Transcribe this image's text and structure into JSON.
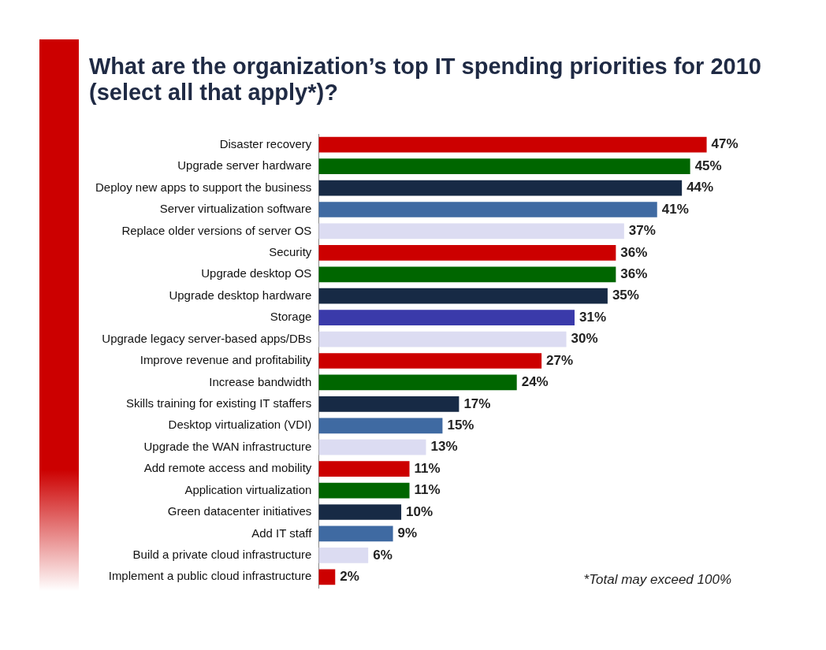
{
  "chart_data": {
    "type": "bar",
    "orientation": "horizontal",
    "title": "What are the organization’s top IT spending priorities for 2010 (select all that apply*)?",
    "categories": [
      "Disaster recovery",
      "Upgrade server hardware",
      "Deploy new apps to support the business",
      "Server virtualization software",
      "Replace older versions of server OS",
      "Security",
      "Upgrade desktop OS",
      "Upgrade desktop hardware",
      "Storage",
      "Upgrade legacy server-based apps/DBs",
      "Improve revenue and profitability",
      "Increase bandwidth",
      "Skills training for existing IT staffers",
      "Desktop virtualization (VDI)",
      "Upgrade the WAN infrastructure",
      "Add remote access and mobility",
      "Application virtualization",
      "Green datacenter initiatives",
      "Add IT staff",
      "Build a private cloud infrastructure",
      "Implement a public cloud infrastructure"
    ],
    "values": [
      47,
      45,
      44,
      41,
      37,
      36,
      36,
      35,
      31,
      30,
      27,
      24,
      17,
      15,
      13,
      11,
      11,
      10,
      9,
      6,
      2
    ],
    "value_labels": [
      "47%",
      "45%",
      "44%",
      "41%",
      "37%",
      "36%",
      "36%",
      "35%",
      "31%",
      "30%",
      "27%",
      "24%",
      "17%",
      "15%",
      "13%",
      "11%",
      "11%",
      "10%",
      "9%",
      "6%",
      "2%"
    ],
    "colors": [
      "#cc0000",
      "#006600",
      "#172a45",
      "#3f6aa2",
      "#dcdcf2",
      "#cc0000",
      "#006600",
      "#172a45",
      "#3a3aaa",
      "#dcdcf2",
      "#cc0000",
      "#006600",
      "#172a45",
      "#3f6aa2",
      "#dcdcf2",
      "#cc0000",
      "#006600",
      "#172a45",
      "#3f6aa2",
      "#dcdcf2",
      "#cc0000"
    ],
    "annotations": [
      "*Total may exceed 100%"
    ],
    "grid": false,
    "legend": false
  }
}
